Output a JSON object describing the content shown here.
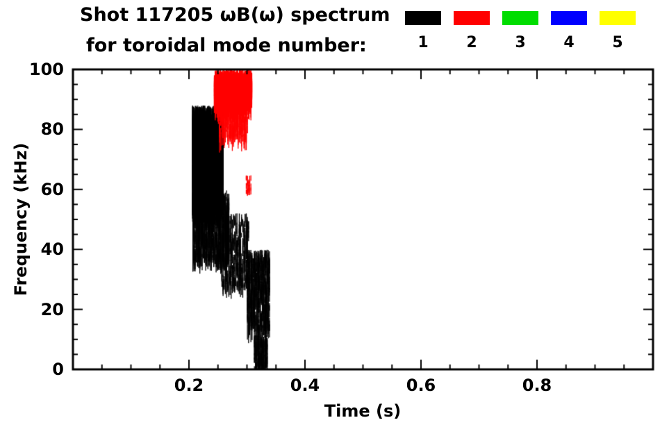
{
  "header": {
    "title": "Shot 117205 ωB(ω) spectrum",
    "subtitle": "for toroidal mode number:"
  },
  "legend": [
    {
      "label": "1",
      "color": "#000000"
    },
    {
      "label": "2",
      "color": "#ff0000"
    },
    {
      "label": "3",
      "color": "#00dd00"
    },
    {
      "label": "4",
      "color": "#0000ff"
    },
    {
      "label": "5",
      "color": "#ffff00"
    }
  ],
  "chart_data": {
    "type": "scatter",
    "title": "Shot 117205 ωB(ω) spectrum for toroidal mode number: 1 2 3 4 5",
    "xlabel": "Time (s)",
    "ylabel": "Frequency (kHz)",
    "xlim": [
      0.0,
      1.0
    ],
    "ylim": [
      0,
      100
    ],
    "grid": false,
    "legend_position": "top-right",
    "xticks": {
      "major": [
        0.2,
        0.4,
        0.6,
        0.8
      ],
      "labels": [
        "0.2",
        "0.4",
        "0.6",
        "0.8"
      ],
      "minor_step": 0.05
    },
    "yticks": {
      "major": [
        0,
        20,
        40,
        60,
        80,
        100
      ],
      "labels": [
        "0",
        "20",
        "40",
        "60",
        "80",
        "100"
      ],
      "minor_step": 5
    },
    "series": [
      {
        "name": "toroidal mode n=1",
        "color": "#000000",
        "clusters": [
          {
            "t": [
              0.205,
              0.258
            ],
            "f": [
              55,
              88
            ],
            "n": 2600,
            "seg": [
              2,
              9
            ],
            "quant": 0.0015
          },
          {
            "t": [
              0.205,
              0.268
            ],
            "f": [
              38,
              60
            ],
            "n": 900,
            "seg": [
              2,
              7
            ],
            "quant": 0.002
          },
          {
            "t": [
              0.255,
              0.302
            ],
            "f": [
              28,
              52
            ],
            "n": 450,
            "seg": [
              1.5,
              5
            ],
            "quant": 0.002
          },
          {
            "t": [
              0.3,
              0.338
            ],
            "f": [
              14,
              40
            ],
            "n": 650,
            "seg": [
              1.5,
              6
            ],
            "quant": 0.002
          },
          {
            "t": [
              0.312,
              0.335
            ],
            "f": [
              1,
              12
            ],
            "n": 280,
            "seg": [
              1,
              4
            ],
            "quant": 0.002
          },
          {
            "t": [
              0.282,
              0.3
            ],
            "f": [
              88,
              93
            ],
            "n": 50,
            "seg": [
              1,
              3
            ],
            "quant": 0.002
          }
        ]
      },
      {
        "name": "toroidal mode n=2",
        "color": "#ff0000",
        "clusters": [
          {
            "t": [
              0.243,
              0.307
            ],
            "f": [
              90,
              100
            ],
            "n": 1600,
            "seg": [
              2,
              8
            ],
            "quant": 0.0015
          },
          {
            "t": [
              0.25,
              0.3
            ],
            "f": [
              78,
              92
            ],
            "n": 380,
            "seg": [
              1.5,
              6
            ],
            "quant": 0.002
          },
          {
            "t": [
              0.298,
              0.306
            ],
            "f": [
              60,
              65
            ],
            "n": 30,
            "seg": [
              1,
              2.5
            ],
            "quant": 0.002
          }
        ]
      }
    ]
  }
}
